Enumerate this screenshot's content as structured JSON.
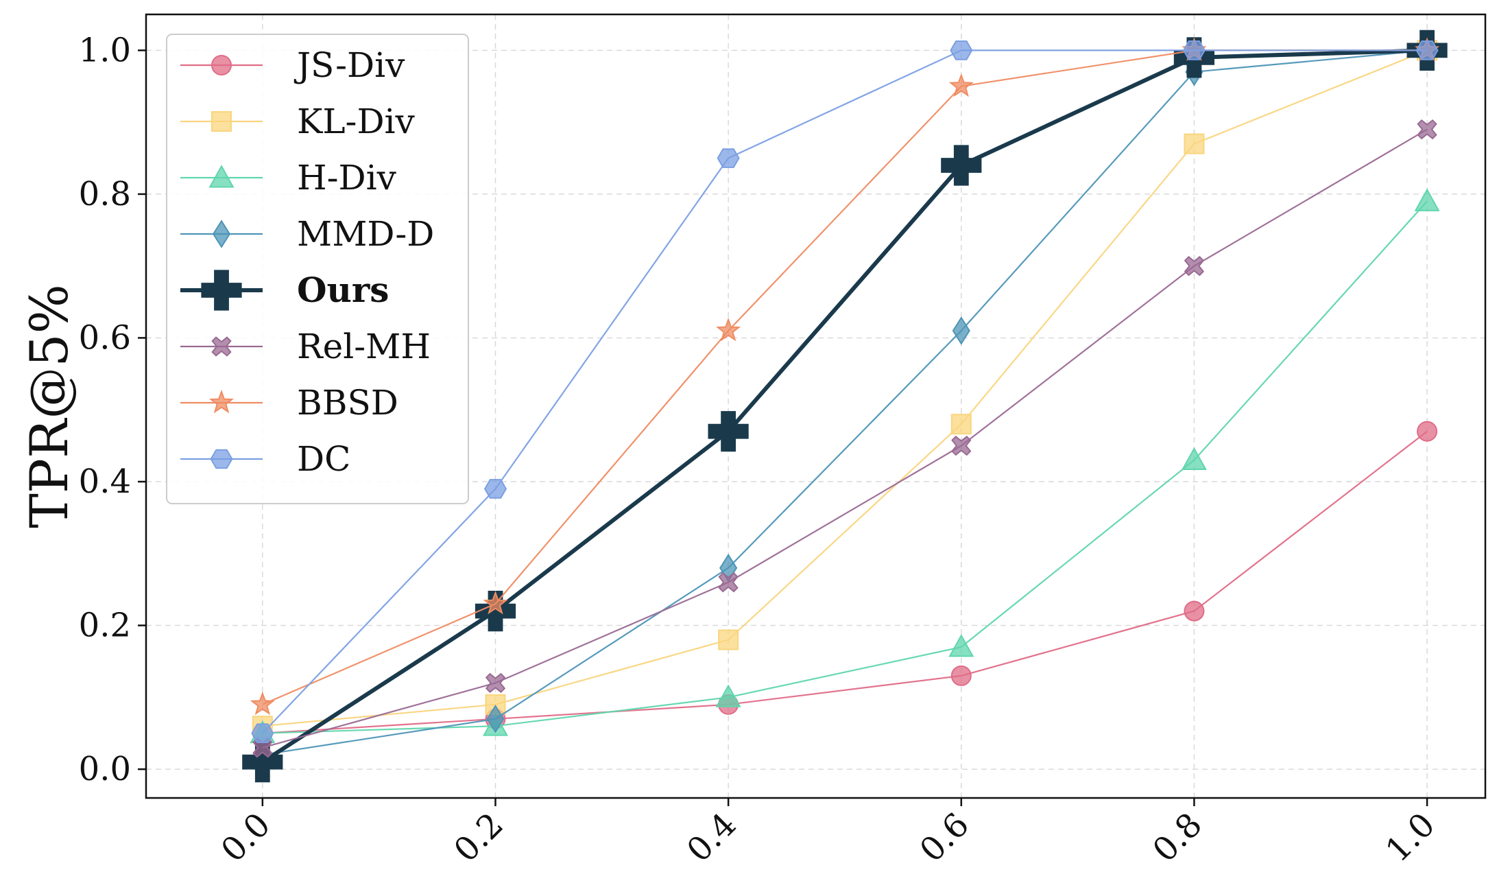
{
  "chart_data": {
    "type": "line",
    "title": "",
    "xlabel": "",
    "ylabel": "TPR@5%",
    "x": [
      0.0,
      0.2,
      0.4,
      0.6,
      0.8,
      1.0
    ],
    "xtick_labels": [
      "0.0",
      "0.2",
      "0.4",
      "0.6",
      "0.8",
      "1.0"
    ],
    "ytick_labels": [
      "0.0",
      "0.2",
      "0.4",
      "0.6",
      "0.8",
      "1.0"
    ],
    "ylim": [
      -0.04,
      1.05
    ],
    "xlim": [
      -0.1,
      1.05
    ],
    "grid": true,
    "legend_position": "top-left",
    "series": [
      {
        "name": "JS-Div",
        "color": "#e06c87",
        "marker": "circle",
        "bold": false,
        "values": [
          0.05,
          0.07,
          0.09,
          0.13,
          0.22,
          0.47
        ]
      },
      {
        "name": "KL-Div",
        "color": "#f9d57e",
        "marker": "square",
        "bold": false,
        "values": [
          0.06,
          0.09,
          0.18,
          0.48,
          0.87,
          1.0
        ]
      },
      {
        "name": "H-Div",
        "color": "#5fd6ad",
        "marker": "triangle",
        "bold": false,
        "values": [
          0.05,
          0.06,
          0.1,
          0.17,
          0.43,
          0.79
        ]
      },
      {
        "name": "MMD-D",
        "color": "#4d95b7",
        "marker": "diamond",
        "bold": false,
        "values": [
          0.02,
          0.07,
          0.28,
          0.61,
          0.97,
          1.0
        ]
      },
      {
        "name": "Ours",
        "color": "#1a3a4c",
        "marker": "plus",
        "bold": true,
        "values": [
          0.01,
          0.22,
          0.47,
          0.84,
          0.99,
          1.0
        ]
      },
      {
        "name": "Rel-MH",
        "color": "#9a6993",
        "marker": "x",
        "bold": false,
        "values": [
          0.03,
          0.12,
          0.26,
          0.45,
          0.7,
          0.89
        ]
      },
      {
        "name": "BBSD",
        "color": "#ef8c62",
        "marker": "star",
        "bold": false,
        "values": [
          0.09,
          0.23,
          0.61,
          0.95,
          1.0,
          1.0
        ]
      },
      {
        "name": "DC",
        "color": "#7b9fe3",
        "marker": "hexagon",
        "bold": false,
        "values": [
          0.05,
          0.39,
          0.85,
          1.0,
          1.0,
          1.0
        ]
      }
    ]
  }
}
